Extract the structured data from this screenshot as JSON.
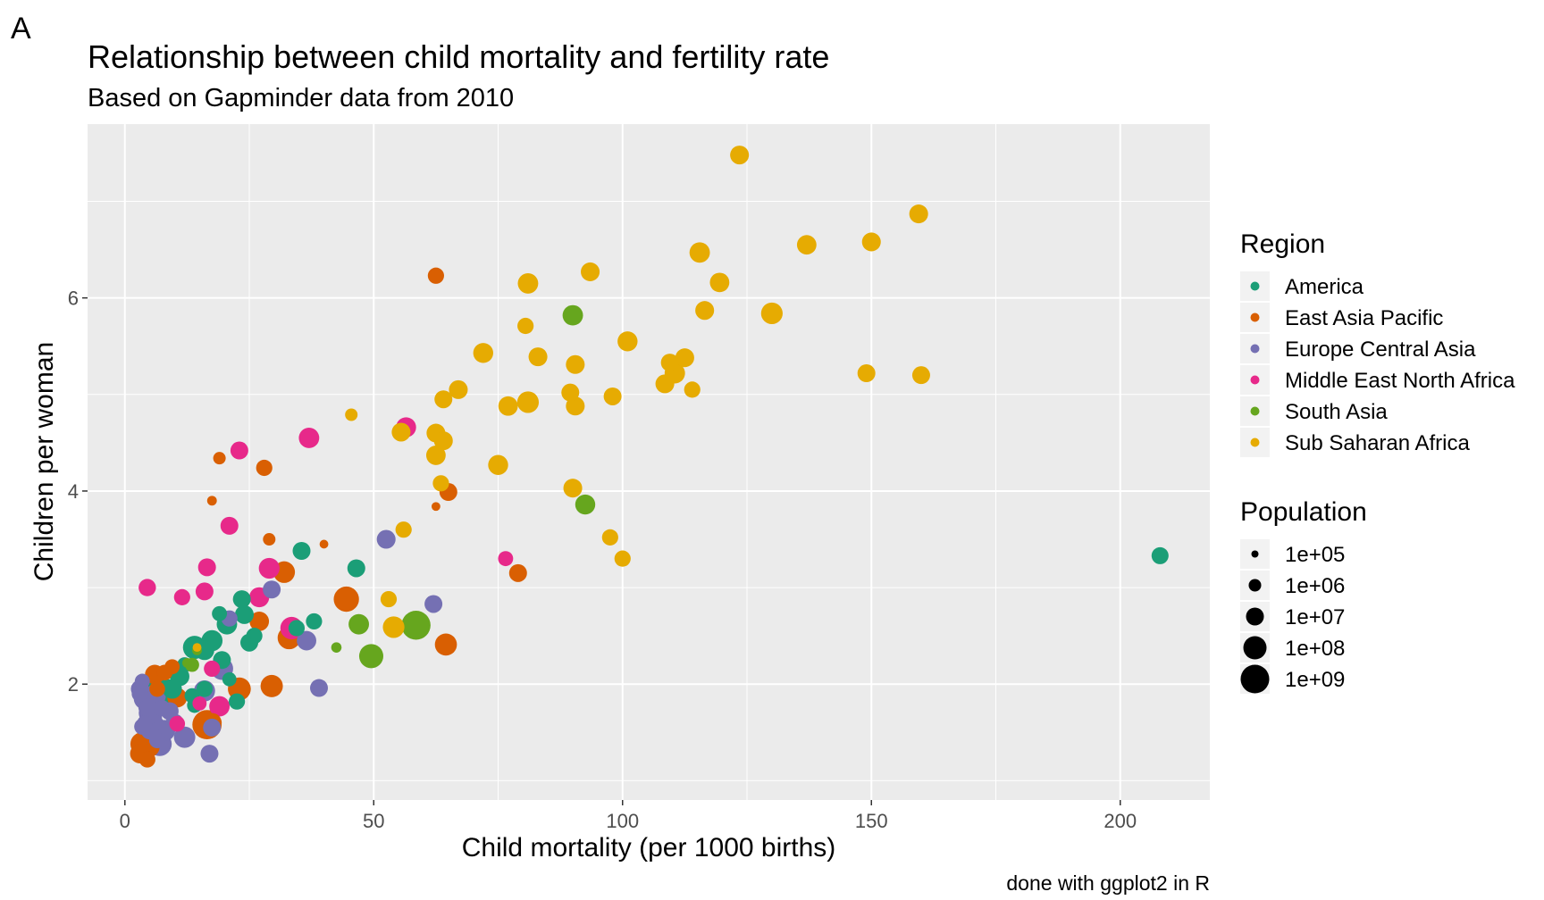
{
  "panel_tag": "A",
  "caption": "done with ggplot2 in R",
  "chart_data": {
    "type": "scatter",
    "title": "Relationship between child mortality and fertility rate",
    "subtitle": "Based on Gapminder data from 2010",
    "xlabel": "Child mortality (per 1000 births)",
    "ylabel": "Children per woman",
    "xlim": [
      -7.5,
      218
    ],
    "ylim": [
      0.8,
      7.8
    ],
    "x_ticks": [
      0,
      50,
      100,
      150,
      200
    ],
    "y_ticks": [
      2,
      4,
      6
    ],
    "x_minor_ticks": [
      25,
      75,
      125,
      175
    ],
    "y_minor_ticks": [
      1,
      3,
      5,
      7
    ],
    "grid": true,
    "panel_background": "#ebebeb",
    "legend_position": "right",
    "color_legend": {
      "title": "Region",
      "entries": [
        {
          "label": "America",
          "color": "#1b9e77"
        },
        {
          "label": "East Asia Pacific",
          "color": "#d95f02"
        },
        {
          "label": "Europe Central Asia",
          "color": "#7570b3"
        },
        {
          "label": "Middle East North Africa",
          "color": "#e7298a"
        },
        {
          "label": "South Asia",
          "color": "#66a61e"
        },
        {
          "label": "Sub Saharan Africa",
          "color": "#e6ab02"
        }
      ]
    },
    "size_legend": {
      "title": "Population",
      "entries": [
        {
          "label": "1e+05",
          "value": 100000
        },
        {
          "label": "1e+06",
          "value": 1000000
        },
        {
          "label": "1e+07",
          "value": 10000000
        },
        {
          "label": "1e+08",
          "value": 100000000
        },
        {
          "label": "1e+09",
          "value": 1000000000
        }
      ]
    },
    "series": [
      {
        "name": "America",
        "points": [
          [
            208,
            3.33,
            7000000.0
          ],
          [
            35.5,
            3.38,
            10000000.0
          ],
          [
            46.5,
            3.2,
            10000000.0
          ],
          [
            23.5,
            2.88,
            10000000.0
          ],
          [
            24,
            2.72,
            15000000.0
          ],
          [
            25,
            2.43,
            10000000.0
          ],
          [
            20.5,
            2.62,
            30000000.0
          ],
          [
            17.5,
            2.45,
            40000000.0
          ],
          [
            16,
            2.35,
            20000000.0
          ],
          [
            19.5,
            2.25,
            10000000.0
          ],
          [
            38,
            2.65,
            5000000.0
          ],
          [
            34.5,
            2.58,
            5000000.0
          ],
          [
            26,
            2.5,
            5000000.0
          ],
          [
            14,
            2.38,
            100000000.0
          ],
          [
            11,
            2.08,
            20000000.0
          ],
          [
            8,
            1.93,
            190000000.0
          ],
          [
            5,
            1.9,
            300000000.0
          ],
          [
            14,
            1.78,
            3000000.0
          ],
          [
            13.5,
            1.88,
            3000000.0
          ],
          [
            22.5,
            1.82,
            5000000.0
          ],
          [
            16,
            1.95,
            5000000.0
          ],
          [
            19,
            2.73,
            3000000.0
          ],
          [
            12,
            2.2,
            3000000.0
          ],
          [
            21,
            2.05,
            2000000.0
          ],
          [
            9.5,
            1.95,
            20000000.0
          ]
        ]
      },
      {
        "name": "East Asia Pacific",
        "points": [
          [
            62.5,
            6.23,
            5000000.0
          ],
          [
            28,
            4.24,
            5000000.0
          ],
          [
            19,
            4.34,
            1000000.0
          ],
          [
            17.5,
            3.9,
            300000.0
          ],
          [
            65,
            3.99,
            10000000.0
          ],
          [
            62.5,
            3.84,
            200000.0
          ],
          [
            29,
            3.5,
            1000000.0
          ],
          [
            40,
            3.45,
            200000.0
          ],
          [
            79,
            3.15,
            10000000.0
          ],
          [
            32,
            3.16,
            50000000.0
          ],
          [
            44.5,
            2.88,
            240000000.0
          ],
          [
            27,
            2.65,
            20000000.0
          ],
          [
            33,
            2.48,
            90000000.0
          ],
          [
            64.5,
            2.41,
            60000000.0
          ],
          [
            29.5,
            1.98,
            67000000.0
          ],
          [
            23,
            1.95,
            88000000.0
          ],
          [
            16.5,
            1.58,
            1340000000.0
          ],
          [
            17.5,
            1.6,
            20000000.0
          ],
          [
            3.5,
            1.38,
            127000000.0
          ],
          [
            4.5,
            1.22,
            5000000.0
          ],
          [
            3,
            1.28,
            20000000.0
          ],
          [
            6,
            2.1,
            20000000.0
          ],
          [
            8,
            2.12,
            4000000.0
          ],
          [
            10.5,
            1.86,
            22000000.0
          ],
          [
            9.5,
            2.18,
            3000000.0
          ],
          [
            5,
            1.35,
            23000000.0
          ],
          [
            6.5,
            1.95,
            4000000.0
          ]
        ]
      },
      {
        "name": "Europe Central Asia",
        "points": [
          [
            52.5,
            3.5,
            15000000.0
          ],
          [
            29.5,
            2.98,
            10000000.0
          ],
          [
            62,
            2.83,
            10000000.0
          ],
          [
            36.5,
            2.45,
            20000000.0
          ],
          [
            39,
            1.96,
            10000000.0
          ],
          [
            21,
            2.68,
            5000000.0
          ],
          [
            19.5,
            2.16,
            70000000.0
          ],
          [
            16,
            1.93,
            40000000.0
          ],
          [
            17.5,
            1.55,
            10000000.0
          ],
          [
            17,
            1.28,
            10000000.0
          ],
          [
            12,
            1.45,
            45000000.0
          ],
          [
            7,
            1.38,
            140000000.0
          ],
          [
            6,
            1.55,
            80000000.0
          ],
          [
            5,
            1.7,
            60000000.0
          ],
          [
            3.5,
            2.03,
            3000000.0
          ],
          [
            4,
            1.85,
            60000000.0
          ],
          [
            3,
            1.95,
            10000000.0
          ],
          [
            5,
            1.52,
            10000000.0
          ],
          [
            3.5,
            1.56,
            5000000.0
          ],
          [
            10,
            1.6,
            10000000.0
          ],
          [
            6,
            1.88,
            65000000.0
          ],
          [
            8,
            1.52,
            40000000.0
          ],
          [
            4.5,
            1.76,
            10000000.0
          ],
          [
            6.5,
            1.42,
            5000000.0
          ],
          [
            3,
            1.9,
            5000000.0
          ],
          [
            5.5,
            1.65,
            20000000.0
          ],
          [
            9,
            1.72,
            10000000.0
          ],
          [
            7.5,
            1.75,
            5000000.0
          ],
          [
            4,
            1.6,
            3000000.0
          ]
        ]
      },
      {
        "name": "Middle East North Africa",
        "points": [
          [
            37,
            4.55,
            30000000.0
          ],
          [
            56.5,
            4.66,
            25000000.0
          ],
          [
            23,
            4.42,
            10000000.0
          ],
          [
            21,
            3.64,
            10000000.0
          ],
          [
            16.5,
            3.21,
            10000000.0
          ],
          [
            29,
            3.2,
            35000000.0
          ],
          [
            4.5,
            3.0,
            8000000.0
          ],
          [
            16,
            2.96,
            10000000.0
          ],
          [
            11.5,
            2.9,
            5000000.0
          ],
          [
            27,
            2.9,
            25000000.0
          ],
          [
            33.5,
            2.58,
            75000000.0
          ],
          [
            76.5,
            3.3,
            3000000.0
          ],
          [
            17.5,
            2.16,
            5000000.0
          ],
          [
            19,
            1.77,
            30000000.0
          ],
          [
            10.5,
            1.59,
            4000000.0
          ],
          [
            15,
            1.8,
            2000000.0
          ]
        ]
      },
      {
        "name": "South Asia",
        "points": [
          [
            90,
            5.82,
            30000000.0
          ],
          [
            92.5,
            3.86,
            25000000.0
          ],
          [
            58.5,
            2.61,
            1200000000.0
          ],
          [
            49.5,
            2.29,
            150000000.0
          ],
          [
            47,
            2.62,
            30000000.0
          ],
          [
            42.5,
            2.38,
            400000.0
          ],
          [
            12.5,
            2.22,
            300000.0
          ],
          [
            14.5,
            2.35,
            300000.0
          ],
          [
            13.5,
            2.2,
            2000000.0
          ]
        ]
      },
      {
        "name": "Sub Saharan Africa",
        "points": [
          [
            123.5,
            7.48,
            15000000.0
          ],
          [
            159.5,
            6.87,
            15000000.0
          ],
          [
            137,
            6.55,
            20000000.0
          ],
          [
            150,
            6.58,
            15000000.0
          ],
          [
            115.5,
            6.47,
            30000000.0
          ],
          [
            93.5,
            6.27,
            15000000.0
          ],
          [
            81,
            6.15,
            30000000.0
          ],
          [
            119.5,
            6.16,
            20000000.0
          ],
          [
            116.5,
            5.87,
            15000000.0
          ],
          [
            130,
            5.84,
            50000000.0
          ],
          [
            80.5,
            5.71,
            5000000.0
          ],
          [
            101,
            5.55,
            25000000.0
          ],
          [
            72,
            5.43,
            25000000.0
          ],
          [
            83,
            5.39,
            15000000.0
          ],
          [
            112.5,
            5.38,
            15000000.0
          ],
          [
            109.5,
            5.33,
            10000000.0
          ],
          [
            90.5,
            5.31,
            15000000.0
          ],
          [
            110.5,
            5.22,
            30000000.0
          ],
          [
            149,
            5.22,
            10000000.0
          ],
          [
            160,
            5.2,
            10000000.0
          ],
          [
            108.5,
            5.11,
            15000000.0
          ],
          [
            114,
            5.05,
            5000000.0
          ],
          [
            67,
            5.05,
            15000000.0
          ],
          [
            89.5,
            5.02,
            10000000.0
          ],
          [
            64,
            4.95,
            10000000.0
          ],
          [
            98,
            4.98,
            10000000.0
          ],
          [
            81,
            4.92,
            50000000.0
          ],
          [
            77,
            4.88,
            20000000.0
          ],
          [
            90.5,
            4.88,
            15000000.0
          ],
          [
            45.5,
            4.79,
            1000000.0
          ],
          [
            62.5,
            4.6,
            15000000.0
          ],
          [
            55.5,
            4.61,
            15000000.0
          ],
          [
            64,
            4.52,
            15000000.0
          ],
          [
            62.5,
            4.37,
            20000000.0
          ],
          [
            75,
            4.27,
            25000000.0
          ],
          [
            63.5,
            4.08,
            5000000.0
          ],
          [
            90,
            4.03,
            15000000.0
          ],
          [
            56,
            3.6,
            5000000.0
          ],
          [
            97.5,
            3.52,
            5000000.0
          ],
          [
            100,
            3.3,
            5000000.0
          ],
          [
            53,
            2.88,
            5000000.0
          ],
          [
            54,
            2.59,
            50000000.0
          ],
          [
            14.5,
            2.38,
            200000.0
          ]
        ]
      }
    ]
  }
}
